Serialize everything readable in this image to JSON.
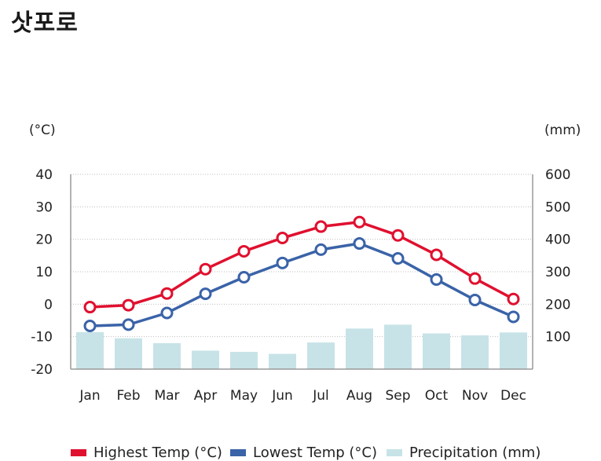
{
  "title": "삿포로",
  "colors": {
    "high": "#e0102f",
    "low": "#3a63a8",
    "precip": "#c7e3e7",
    "grid": "#bdbdbd",
    "axis": "#9a9a9a"
  },
  "chart_data": {
    "type": "line",
    "title": "삿포로",
    "categories": [
      "Jan",
      "Feb",
      "Mar",
      "Apr",
      "May",
      "Jun",
      "Jul",
      "Aug",
      "Sep",
      "Oct",
      "Nov",
      "Dec"
    ],
    "y_left": {
      "unit": "(°C)",
      "range": [
        -20,
        40
      ],
      "ticks": [
        "-20",
        "-10",
        "0",
        "10",
        "20",
        "30",
        "40"
      ]
    },
    "y_right": {
      "unit": "(mm)",
      "range": [
        0,
        600
      ],
      "ticks": [
        "100",
        "200",
        "300",
        "400",
        "500",
        "600"
      ]
    },
    "grid": true,
    "legend_position": "bottom",
    "series": [
      {
        "name": "Highest Temp (°C)",
        "type": "line",
        "axis": "left",
        "color": "#e0102f",
        "values": [
          -0.9,
          -0.3,
          3.3,
          10.8,
          16.3,
          20.4,
          23.9,
          25.3,
          21.2,
          15.2,
          7.9,
          1.6
        ]
      },
      {
        "name": "Lowest Temp (°C)",
        "type": "line",
        "axis": "left",
        "color": "#3a63a8",
        "values": [
          -6.7,
          -6.3,
          -2.7,
          3.2,
          8.3,
          12.7,
          16.8,
          18.7,
          14.1,
          7.6,
          1.3,
          -3.9
        ]
      },
      {
        "name": "Precipitation (mm)",
        "type": "bar",
        "axis": "right",
        "color": "#c7e3e7",
        "values": [
          114,
          95,
          80,
          57,
          53,
          47,
          82,
          125,
          137,
          110,
          104,
          113
        ]
      }
    ]
  }
}
